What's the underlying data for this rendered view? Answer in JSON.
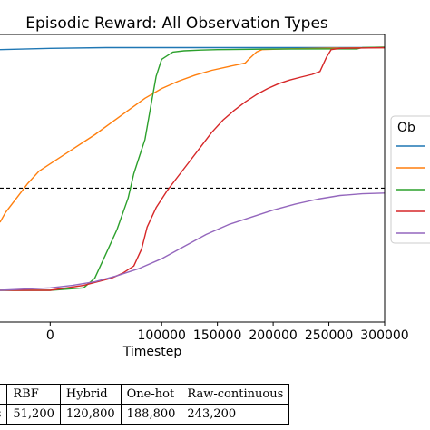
{
  "chart_data": {
    "type": "line",
    "title": "Episodic Reward: All Observation Types",
    "xlabel": "Timestep",
    "ylabel": "",
    "xlim": [
      -45000,
      300000
    ],
    "ylim": [
      0,
      1
    ],
    "xticks": [
      0,
      100000,
      150000,
      200000,
      250000,
      300000
    ],
    "xtick_labels": [
      "0",
      "100000",
      "150000",
      "200000",
      "250000",
      "300000"
    ],
    "grid": false,
    "legend": {
      "title": "Ob",
      "placement": "right"
    },
    "reference_line": {
      "y": 0.42,
      "style": "dashed",
      "color": "#000000"
    },
    "series": [
      {
        "color": "#1f77b4",
        "points": [
          [
            -45000,
            0.99
          ],
          [
            0,
            0.995
          ],
          [
            50000,
            0.998
          ],
          [
            100000,
            0.998
          ],
          [
            150000,
            0.998
          ],
          [
            200000,
            0.998
          ],
          [
            250000,
            0.998
          ],
          [
            300000,
            0.998
          ]
        ]
      },
      {
        "color": "#ff7f0e",
        "points": [
          [
            -45000,
            0.28
          ],
          [
            -40000,
            0.32
          ],
          [
            -30000,
            0.38
          ],
          [
            -20000,
            0.44
          ],
          [
            -10000,
            0.49
          ],
          [
            0,
            0.52
          ],
          [
            10000,
            0.55
          ],
          [
            20000,
            0.58
          ],
          [
            30000,
            0.61
          ],
          [
            40000,
            0.64
          ],
          [
            55000,
            0.69
          ],
          [
            70000,
            0.74
          ],
          [
            85000,
            0.79
          ],
          [
            100000,
            0.83
          ],
          [
            115000,
            0.86
          ],
          [
            130000,
            0.885
          ],
          [
            145000,
            0.905
          ],
          [
            160000,
            0.92
          ],
          [
            170000,
            0.93
          ],
          [
            175000,
            0.935
          ],
          [
            178000,
            0.95
          ],
          [
            185000,
            0.98
          ],
          [
            190000,
            0.99
          ],
          [
            210000,
            0.993
          ],
          [
            250000,
            0.996
          ],
          [
            300000,
            0.998
          ]
        ]
      },
      {
        "color": "#2ca02c",
        "points": [
          [
            -45000,
            0.0
          ],
          [
            0,
            0.0
          ],
          [
            30000,
            0.01
          ],
          [
            40000,
            0.05
          ],
          [
            50000,
            0.15
          ],
          [
            60000,
            0.25
          ],
          [
            70000,
            0.38
          ],
          [
            75000,
            0.48
          ],
          [
            80000,
            0.55
          ],
          [
            85000,
            0.62
          ],
          [
            90000,
            0.75
          ],
          [
            95000,
            0.88
          ],
          [
            100000,
            0.95
          ],
          [
            110000,
            0.98
          ],
          [
            120000,
            0.985
          ],
          [
            135000,
            0.988
          ],
          [
            150000,
            0.99
          ],
          [
            200000,
            0.992
          ],
          [
            250000,
            0.993
          ],
          [
            275000,
            0.993
          ],
          [
            280000,
            0.998
          ],
          [
            300000,
            1.0
          ]
        ]
      },
      {
        "color": "#d62728",
        "points": [
          [
            -45000,
            0.0
          ],
          [
            0,
            0.0
          ],
          [
            30000,
            0.02
          ],
          [
            55000,
            0.05
          ],
          [
            65000,
            0.07
          ],
          [
            75000,
            0.1
          ],
          [
            82000,
            0.17
          ],
          [
            87000,
            0.26
          ],
          [
            95000,
            0.34
          ],
          [
            105000,
            0.41
          ],
          [
            115000,
            0.47
          ],
          [
            125000,
            0.53
          ],
          [
            135000,
            0.59
          ],
          [
            145000,
            0.65
          ],
          [
            155000,
            0.7
          ],
          [
            165000,
            0.74
          ],
          [
            175000,
            0.775
          ],
          [
            185000,
            0.805
          ],
          [
            195000,
            0.83
          ],
          [
            205000,
            0.85
          ],
          [
            215000,
            0.865
          ],
          [
            225000,
            0.877
          ],
          [
            235000,
            0.888
          ],
          [
            242000,
            0.9
          ],
          [
            248000,
            0.96
          ],
          [
            252000,
            0.99
          ],
          [
            260000,
            0.995
          ],
          [
            300000,
            0.998
          ]
        ]
      },
      {
        "color": "#9467bd",
        "points": [
          [
            -45000,
            0.0
          ],
          [
            0,
            0.01
          ],
          [
            20000,
            0.02
          ],
          [
            40000,
            0.035
          ],
          [
            60000,
            0.06
          ],
          [
            80000,
            0.09
          ],
          [
            100000,
            0.13
          ],
          [
            120000,
            0.18
          ],
          [
            140000,
            0.23
          ],
          [
            160000,
            0.27
          ],
          [
            180000,
            0.3
          ],
          [
            200000,
            0.33
          ],
          [
            220000,
            0.355
          ],
          [
            240000,
            0.375
          ],
          [
            260000,
            0.39
          ],
          [
            280000,
            0.397
          ],
          [
            300000,
            0.4
          ]
        ]
      }
    ]
  },
  "table": {
    "headers": [
      "",
      "RBF",
      "Hybrid",
      "One-hot",
      "Raw-continuous"
    ],
    "rows": [
      [
        "es",
        "51,200",
        "120,800",
        "188,800",
        "243,200"
      ]
    ]
  }
}
